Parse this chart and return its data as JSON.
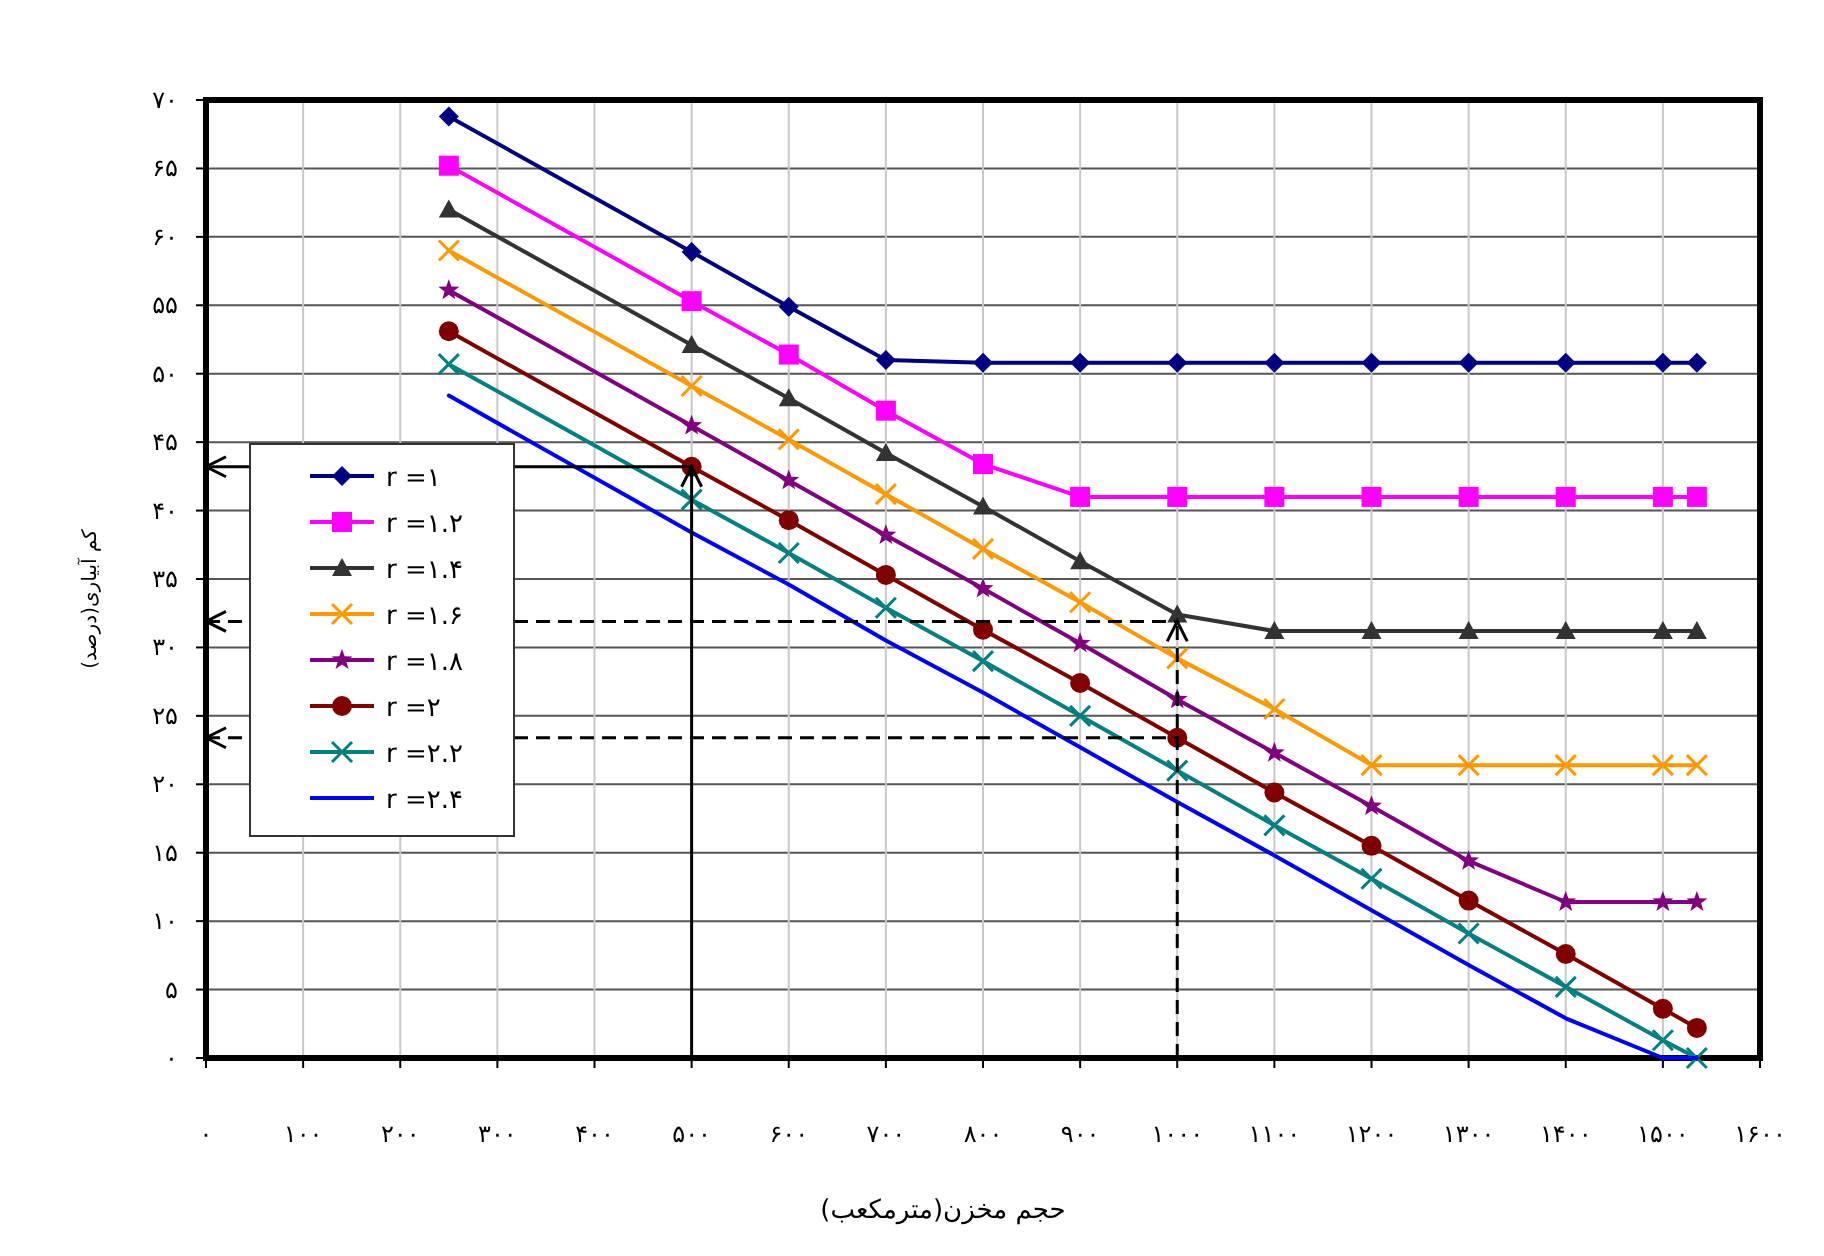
{
  "chart_data": {
    "type": "line",
    "xlabel": "حجم مخزن(مترمکعب)",
    "ylabel": "کم آبیاری(درصد)",
    "x": [
      250,
      500,
      600,
      700,
      800,
      900,
      1000,
      1100,
      1200,
      1300,
      1400,
      1500,
      1535
    ],
    "series": [
      {
        "name": "r =۱",
        "color": "#000080",
        "marker": "diamond",
        "values": [
          68.8,
          58.9,
          54.9,
          51.0,
          50.8,
          50.8,
          50.8,
          50.8,
          50.8,
          50.8,
          50.8,
          50.8,
          50.8
        ]
      },
      {
        "name": "r =۱.۲",
        "color": "#ff00ff",
        "marker": "square",
        "values": [
          65.2,
          55.3,
          51.4,
          47.3,
          43.4,
          41.0,
          41.0,
          41.0,
          41.0,
          41.0,
          41.0,
          41.0,
          41.0
        ]
      },
      {
        "name": "r =۱.۴",
        "color": "#333333",
        "marker": "triangle",
        "values": [
          62.0,
          52.1,
          48.2,
          44.2,
          40.3,
          36.3,
          32.4,
          31.2,
          31.2,
          31.2,
          31.2,
          31.2,
          31.2
        ]
      },
      {
        "name": "r =۱.۶",
        "color": "#ff9900",
        "marker": "cross",
        "values": [
          59.0,
          49.1,
          45.2,
          41.2,
          37.2,
          33.3,
          29.2,
          25.5,
          21.4,
          21.4,
          21.4,
          21.4,
          21.4
        ]
      },
      {
        "name": "r =۱.۸",
        "color": "#800080",
        "marker": "star",
        "values": [
          56.1,
          46.2,
          42.2,
          38.2,
          34.3,
          30.3,
          26.2,
          22.3,
          18.4,
          14.4,
          11.4,
          11.4,
          11.4
        ]
      },
      {
        "name": "r =۲",
        "color": "#800000",
        "marker": "circle",
        "values": [
          53.1,
          43.2,
          39.3,
          35.3,
          31.3,
          27.4,
          23.4,
          19.4,
          15.5,
          11.5,
          7.6,
          3.6,
          2.2
        ]
      },
      {
        "name": "r =۲.۲",
        "color": "#008080",
        "marker": "cross",
        "values": [
          50.7,
          40.8,
          36.9,
          32.9,
          29.0,
          25.0,
          21.0,
          17.0,
          13.1,
          9.1,
          5.2,
          1.3,
          0
        ]
      },
      {
        "name": "r =۲.۴",
        "color": "#0000ff",
        "marker": "none",
        "values": [
          48.4,
          38.4,
          34.6,
          30.5,
          26.7,
          22.7,
          18.7,
          14.8,
          10.8,
          6.8,
          2.9,
          0,
          0
        ]
      }
    ],
    "xlim": [
      0,
      1600
    ],
    "xticks": [
      {
        "value": 0,
        "label": "۰"
      },
      {
        "value": 100,
        "label": "۱۰۰"
      },
      {
        "value": 200,
        "label": "۲۰۰"
      },
      {
        "value": 300,
        "label": "۳۰۰"
      },
      {
        "value": 400,
        "label": "۴۰۰"
      },
      {
        "value": 500,
        "label": "۵۰۰"
      },
      {
        "value": 600,
        "label": "۶۰۰"
      },
      {
        "value": 700,
        "label": "۷۰۰"
      },
      {
        "value": 800,
        "label": "۸۰۰"
      },
      {
        "value": 900,
        "label": "۹۰۰"
      },
      {
        "value": 1000,
        "label": "۱۰۰۰"
      },
      {
        "value": 1100,
        "label": "۱۱۰۰"
      },
      {
        "value": 1200,
        "label": "۱۲۰۰"
      },
      {
        "value": 1300,
        "label": "۱۳۰۰"
      },
      {
        "value": 1400,
        "label": "۱۴۰۰"
      },
      {
        "value": 1500,
        "label": "۱۵۰۰"
      },
      {
        "value": 1600,
        "label": "۱۶۰۰"
      }
    ],
    "ylim": [
      0,
      70
    ],
    "yticks": [
      {
        "value": 0,
        "label": "۰"
      },
      {
        "value": 5,
        "label": "۵"
      },
      {
        "value": 10,
        "label": "۱۰"
      },
      {
        "value": 15,
        "label": "۱۵"
      },
      {
        "value": 20,
        "label": "۲۰"
      },
      {
        "value": 25,
        "label": "۲۵"
      },
      {
        "value": 30,
        "label": "۳۰"
      },
      {
        "value": 35,
        "label": "۳۵"
      },
      {
        "value": 40,
        "label": "۴۰"
      },
      {
        "value": 45,
        "label": "۴۵"
      },
      {
        "value": 50,
        "label": "۵۰"
      },
      {
        "value": 55,
        "label": "۵۵"
      },
      {
        "value": 60,
        "label": "۶۰"
      },
      {
        "value": 65,
        "label": "۶۵"
      },
      {
        "value": 70,
        "label": "۷۰"
      }
    ],
    "ref_lines": [
      {
        "axis": "x",
        "value": 500,
        "line_style": "solid",
        "color": "#000000"
      },
      {
        "axis": "y",
        "value": 43.2,
        "line_style": "solid",
        "color": "#000000"
      },
      {
        "axis": "x",
        "value": 1000,
        "line_style": "dashed",
        "color": "#000000"
      },
      {
        "axis": "y",
        "value": 31.9,
        "line_style": "dashed",
        "color": "#000000"
      },
      {
        "axis": "y",
        "value": 23.4,
        "line_style": "dashed",
        "color": "#000000"
      }
    ],
    "grid": true,
    "legend": "left",
    "line_style": "solid"
  }
}
